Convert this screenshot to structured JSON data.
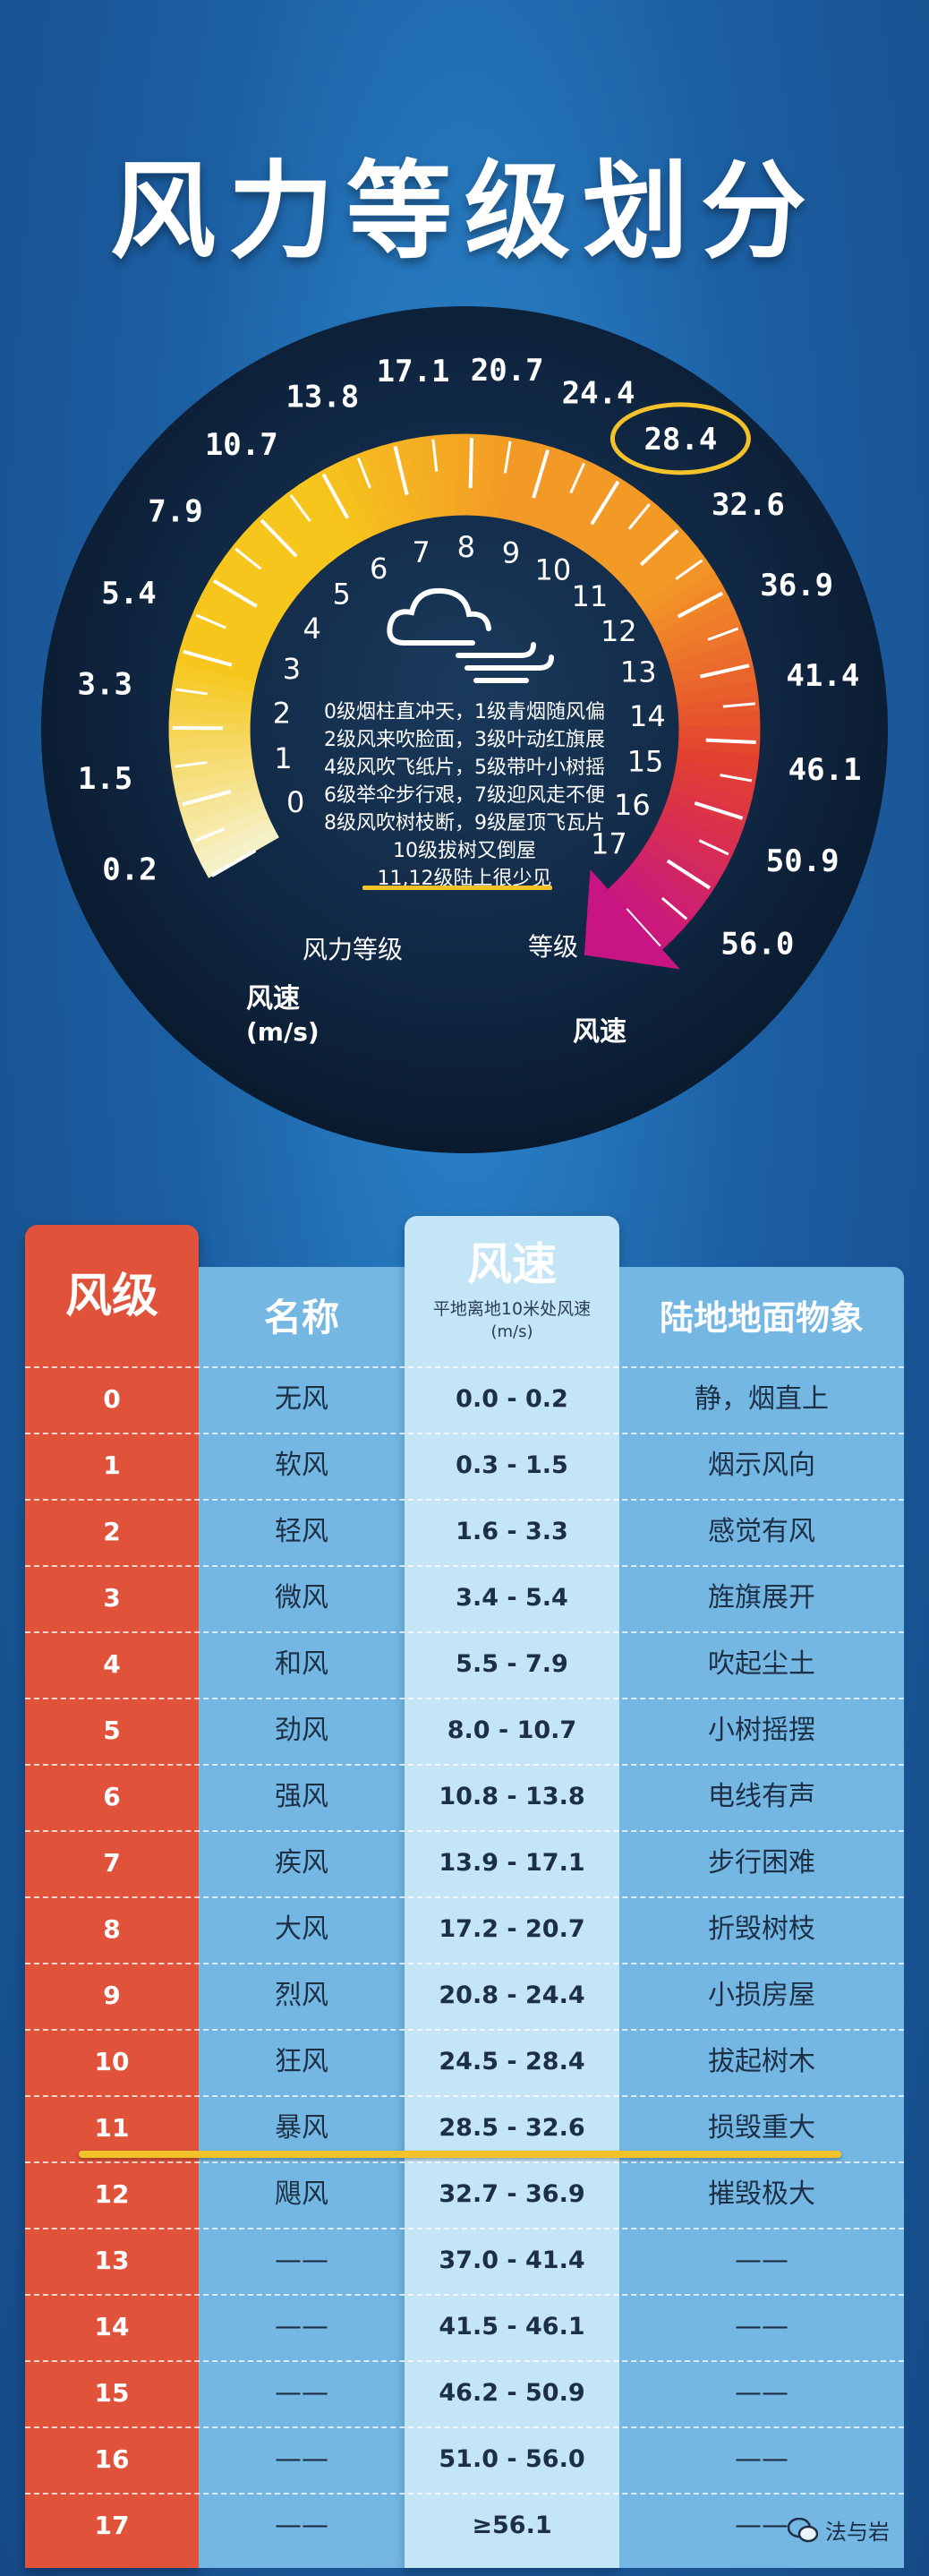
{
  "title": "风力等级划分",
  "dial": {
    "speed_labels": [
      "0.2",
      "1.5",
      "3.3",
      "5.4",
      "7.9",
      "10.7",
      "13.8",
      "17.1",
      "20.7",
      "24.4",
      "28.4",
      "32.6",
      "36.9",
      "41.4",
      "46.1",
      "50.9",
      "56.0"
    ],
    "levels": [
      "0",
      "1",
      "2",
      "3",
      "4",
      "5",
      "6",
      "7",
      "8",
      "9",
      "10",
      "11",
      "12",
      "13",
      "14",
      "15",
      "16",
      "17"
    ],
    "highlighted_speed": "28.4",
    "description_lines": [
      "0级烟柱直冲天，1级青烟随风偏",
      "2级风来吹脸面，3级叶动红旗展",
      "4级风吹飞纸片，5级带叶小树摇",
      "6级举伞步行艰，7级迎风走不便",
      "8级风吹树枝断，9级屋顶飞瓦片",
      "10级拔树又倒屋",
      "11,12级陆上很少见"
    ],
    "left_level_label": "风力等级",
    "left_speed_label": "风速",
    "left_speed_unit": "(m/s)",
    "right_level_label": "等级",
    "right_speed_label": "风速",
    "colors": {
      "gauge_start": "#f6f2c8",
      "gauge_yellow": "#f6c61c",
      "gauge_orange": "#f39a26",
      "gauge_red": "#e3412f",
      "gauge_end": "#c81583",
      "highlight_ring": "#f3c22b"
    },
    "icon": "cloud-wind-icon"
  },
  "table": {
    "headers": {
      "level": "风级",
      "name": "名称",
      "speed": "风速",
      "speed_sub": "平地离地10米处风速",
      "speed_unit": "(m/s)",
      "phenomena": "陆地地面物象"
    },
    "rows": [
      {
        "level": "0",
        "name": "无风",
        "speed": "0.0 - 0.2",
        "phenomena": "静，烟直上"
      },
      {
        "level": "1",
        "name": "软风",
        "speed": "0.3 - 1.5",
        "phenomena": "烟示风向"
      },
      {
        "level": "2",
        "name": "轻风",
        "speed": "1.6 - 3.3",
        "phenomena": "感觉有风"
      },
      {
        "level": "3",
        "name": "微风",
        "speed": "3.4 - 5.4",
        "phenomena": "旌旗展开"
      },
      {
        "level": "4",
        "name": "和风",
        "speed": "5.5 - 7.9",
        "phenomena": "吹起尘土"
      },
      {
        "level": "5",
        "name": "劲风",
        "speed": "8.0 - 10.7",
        "phenomena": "小树摇摆"
      },
      {
        "level": "6",
        "name": "强风",
        "speed": "10.8 - 13.8",
        "phenomena": "电线有声"
      },
      {
        "level": "7",
        "name": "疾风",
        "speed": "13.9 - 17.1",
        "phenomena": "步行困难"
      },
      {
        "level": "8",
        "name": "大风",
        "speed": "17.2 - 20.7",
        "phenomena": "折毁树枝"
      },
      {
        "level": "9",
        "name": "烈风",
        "speed": "20.8 - 24.4",
        "phenomena": "小损房屋"
      },
      {
        "level": "10",
        "name": "狂风",
        "speed": "24.5 - 28.4",
        "phenomena": "拔起树木"
      },
      {
        "level": "11",
        "name": "暴风",
        "speed": "28.5 - 32.6",
        "phenomena": "损毁重大"
      },
      {
        "level": "12",
        "name": "飓风",
        "speed": "32.7 - 36.9",
        "phenomena": "摧毁极大"
      },
      {
        "level": "13",
        "name": "——",
        "speed": "37.0 - 41.4",
        "phenomena": "——"
      },
      {
        "level": "14",
        "name": "——",
        "speed": "41.5 - 46.1",
        "phenomena": "——"
      },
      {
        "level": "15",
        "name": "——",
        "speed": "46.2 - 50.9",
        "phenomena": "——"
      },
      {
        "level": "16",
        "name": "——",
        "speed": "51.0 - 56.0",
        "phenomena": "——"
      },
      {
        "level": "17",
        "name": "——",
        "speed": "≥56.1",
        "phenomena": "——"
      }
    ]
  },
  "watermark": "法与岩",
  "watermark_icon": "wechat-icon"
}
